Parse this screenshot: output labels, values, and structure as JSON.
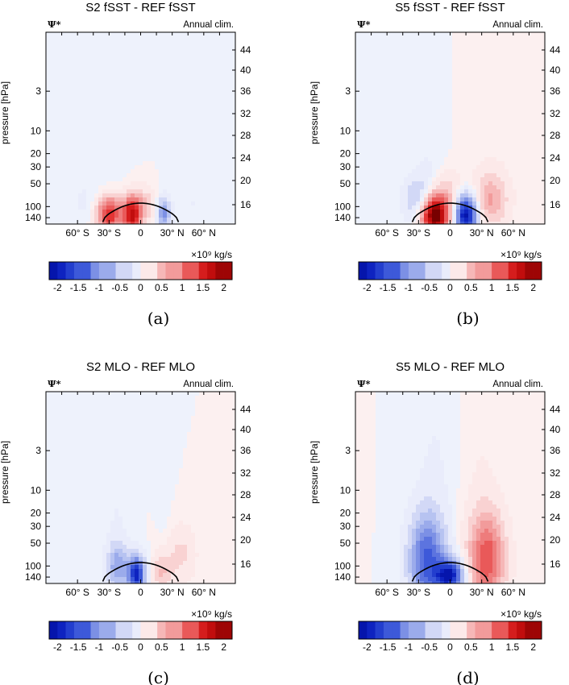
{
  "chart_data": [
    {
      "type": "heatmap",
      "title": "S2 fSST - REF fSST",
      "variable_label": "Ψ*",
      "annotation": "Annual clim.",
      "ylabel": "pressure [hPa]",
      "xticks": [
        "60° S",
        "30° S",
        "0",
        "30° N",
        "60° N"
      ],
      "xtick_values": [
        -60,
        -30,
        0,
        30,
        60
      ],
      "xlim": [
        -90,
        90
      ],
      "yticks_left": [
        "3",
        "10",
        "20",
        "30",
        "50",
        "100",
        "140"
      ],
      "ytick_values_left": [
        3,
        10,
        20,
        30,
        50,
        100,
        140
      ],
      "ylim_hpa": [
        0.5,
        170
      ],
      "yticks_right": [
        "44",
        "40",
        "36",
        "32",
        "28",
        "24",
        "20",
        "16"
      ],
      "colorbar": {
        "unit_label": "×10⁹ kg/s",
        "ticks": [
          "-2",
          "-1.5",
          "-1",
          "-0.5",
          "0",
          "0.5",
          "1",
          "1.5",
          "2"
        ],
        "range": [
          -2,
          2
        ]
      },
      "caption": "(a)",
      "field": [
        {
          "lat": -30,
          "p": 125,
          "value": 1.6,
          "sx": 12,
          "sp": 0.16
        },
        {
          "lat": -8,
          "p": 125,
          "value": 1.8,
          "sx": 9,
          "sp": 0.16
        },
        {
          "lat": 22,
          "p": 125,
          "value": -1.0,
          "sx": 6,
          "sp": 0.14
        },
        {
          "lat": 5,
          "p": 95,
          "value": 0.4,
          "sx": 10,
          "sp": 0.15
        },
        {
          "lat": -45,
          "p": 90,
          "value": -0.15,
          "sx": 25,
          "sp": 0.22
        },
        {
          "lat": 50,
          "p": 90,
          "value": -0.1,
          "sx": 20,
          "sp": 0.2
        },
        {
          "lat": -30,
          "p": 8,
          "value": -0.06,
          "sx": 15,
          "sp": 0.7
        },
        {
          "lat": 40,
          "p": 1.5,
          "value": -0.06,
          "sx": 20,
          "sp": 0.5
        }
      ]
    },
    {
      "type": "heatmap",
      "title": "S5 fSST - REF fSST",
      "variable_label": "Ψ*",
      "annotation": "Annual clim.",
      "ylabel": "pressure [hPa]",
      "xticks": [
        "60° S",
        "30° S",
        "0",
        "30° N",
        "60° N"
      ],
      "xtick_values": [
        -60,
        -30,
        0,
        30,
        60
      ],
      "xlim": [
        -90,
        90
      ],
      "yticks_left": [
        "3",
        "10",
        "20",
        "30",
        "50",
        "100",
        "140"
      ],
      "ytick_values_left": [
        3,
        10,
        20,
        30,
        50,
        100,
        140
      ],
      "ylim_hpa": [
        0.5,
        170
      ],
      "yticks_right": [
        "44",
        "40",
        "36",
        "32",
        "28",
        "24",
        "20",
        "16"
      ],
      "colorbar": {
        "unit_label": "×10⁹ kg/s",
        "ticks": [
          "-2",
          "-1.5",
          "-1",
          "-0.5",
          "0",
          "0.5",
          "1",
          "1.5",
          "2"
        ],
        "range": [
          -2,
          2
        ]
      },
      "caption": "(b)",
      "field": [
        {
          "lat": -15,
          "p": 130,
          "value": 2.4,
          "sx": 14,
          "sp": 0.18
        },
        {
          "lat": 15,
          "p": 130,
          "value": -2.1,
          "sx": 11,
          "sp": 0.18
        },
        {
          "lat": -30,
          "p": 85,
          "value": -0.7,
          "sx": 13,
          "sp": 0.2
        },
        {
          "lat": 38,
          "p": 80,
          "value": 0.7,
          "sx": 16,
          "sp": 0.22
        },
        {
          "lat": 0,
          "p": 70,
          "value": 0.35,
          "sx": 14,
          "sp": 0.2
        },
        {
          "lat": -20,
          "p": 8,
          "value": -0.1,
          "sx": 14,
          "sp": 1.2
        },
        {
          "lat": 40,
          "p": 10,
          "value": 0.06,
          "sx": 25,
          "sp": 1.2
        }
      ]
    },
    {
      "type": "heatmap",
      "title": "S2 MLO - REF MLO",
      "variable_label": "Ψ*",
      "annotation": "Annual clim.",
      "ylabel": "pressure [hPa]",
      "xticks": [
        "60° S",
        "30° S",
        "0",
        "30° N",
        "60° N"
      ],
      "xtick_values": [
        -60,
        -30,
        0,
        30,
        60
      ],
      "xlim": [
        -90,
        90
      ],
      "yticks_left": [
        "3",
        "10",
        "20",
        "30",
        "50",
        "100",
        "140"
      ],
      "ytick_values_left": [
        3,
        10,
        20,
        30,
        50,
        100,
        140
      ],
      "ylim_hpa": [
        0.5,
        170
      ],
      "yticks_right": [
        "44",
        "40",
        "36",
        "32",
        "28",
        "24",
        "20",
        "16"
      ],
      "colorbar": {
        "unit_label": "×10⁹ kg/s",
        "ticks": [
          "-2",
          "-1.5",
          "-1",
          "-0.5",
          "0",
          "0.5",
          "1",
          "1.5",
          "2"
        ],
        "range": [
          -2,
          2
        ]
      },
      "caption": "(c)",
      "field": [
        {
          "lat": -22,
          "p": 100,
          "value": -0.8,
          "sx": 10,
          "sp": 0.2
        },
        {
          "lat": -4,
          "p": 130,
          "value": -1.8,
          "sx": 8,
          "sp": 0.16
        },
        {
          "lat": 20,
          "p": 120,
          "value": 0.5,
          "sx": 9,
          "sp": 0.17
        },
        {
          "lat": 38,
          "p": 70,
          "value": 0.35,
          "sx": 14,
          "sp": 0.25
        },
        {
          "lat": -22,
          "p": 10,
          "value": -0.1,
          "sx": 12,
          "sp": 1.4
        },
        {
          "lat": 22,
          "p": 12,
          "value": -0.07,
          "sx": 6,
          "sp": 0.6
        }
      ]
    },
    {
      "type": "heatmap",
      "title": "S5 MLO - REF MLO",
      "variable_label": "Ψ*",
      "annotation": "Annual clim.",
      "ylabel": "pressure [hPa]",
      "xticks": [
        "60° S",
        "30° S",
        "0",
        "30° N",
        "60° N"
      ],
      "xtick_values": [
        -60,
        -30,
        0,
        30,
        60
      ],
      "xlim": [
        -90,
        90
      ],
      "yticks_left": [
        "3",
        "10",
        "20",
        "30",
        "50",
        "100",
        "140"
      ],
      "ytick_values_left": [
        3,
        10,
        20,
        30,
        50,
        100,
        140
      ],
      "ylim_hpa": [
        0.5,
        170
      ],
      "yticks_right": [
        "44",
        "40",
        "36",
        "32",
        "28",
        "24",
        "20",
        "16"
      ],
      "colorbar": {
        "unit_label": "×10⁹ kg/s",
        "ticks": [
          "-2",
          "-1.5",
          "-1",
          "-0.5",
          "0",
          "0.5",
          "1",
          "1.5",
          "2"
        ],
        "range": [
          -2,
          2
        ]
      },
      "caption": "(d)",
      "field": [
        {
          "lat": -22,
          "p": 85,
          "value": -1.3,
          "sx": 17,
          "sp": 0.4
        },
        {
          "lat": 35,
          "p": 80,
          "value": 1.2,
          "sx": 17,
          "sp": 0.4
        },
        {
          "lat": 0,
          "p": 135,
          "value": -1.8,
          "sx": 13,
          "sp": 0.14
        },
        {
          "lat": -15,
          "p": 15,
          "value": -0.12,
          "sx": 18,
          "sp": 1.4
        },
        {
          "lat": 30,
          "p": 15,
          "value": 0.1,
          "sx": 18,
          "sp": 1.4
        },
        {
          "lat": -85,
          "p": 10,
          "value": 0.05,
          "sx": 5,
          "sp": 2
        },
        {
          "lat": 85,
          "p": 10,
          "value": 0.05,
          "sx": 5,
          "sp": 2
        }
      ]
    }
  ]
}
